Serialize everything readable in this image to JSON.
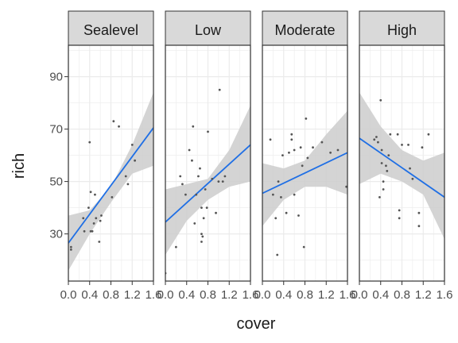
{
  "chart_data": {
    "type": "scatter",
    "xlabel": "cover",
    "ylabel": "rich",
    "xlim": [
      0,
      1.6
    ],
    "ylim": [
      12,
      102
    ],
    "x_ticks": [
      0.0,
      0.4,
      0.8,
      1.2,
      1.6
    ],
    "x_tick_labels": [
      "0.0",
      "0.4",
      "0.8",
      "1.2",
      "1.6"
    ],
    "y_ticks": [
      30,
      50,
      70,
      90
    ],
    "y_tick_labels": [
      "30",
      "50",
      "70",
      "90"
    ],
    "grid": true,
    "colors": {
      "panel_bg": "#ffffff",
      "grid": "#ebebeb",
      "strip_bg": "#d9d9d9",
      "point": "#555555",
      "fit_line": "#1f6fe5",
      "ribbon": "#cccccc"
    },
    "panels": [
      {
        "strip": "Sealevel",
        "fit": {
          "x0": 0.0,
          "y0": 26.5,
          "x1": 1.6,
          "y1": 70.5
        },
        "ribbon": {
          "x": [
            0.0,
            0.4,
            0.8,
            1.2,
            1.6
          ],
          "lower": [
            16,
            30,
            42,
            53,
            56
          ],
          "upper": [
            37,
            39,
            48,
            64,
            84
          ]
        },
        "points": [
          [
            0.05,
            25
          ],
          [
            0.05,
            24
          ],
          [
            0.28,
            36
          ],
          [
            0.3,
            31
          ],
          [
            0.38,
            40
          ],
          [
            0.4,
            65
          ],
          [
            0.45,
            31
          ],
          [
            0.5,
            45
          ],
          [
            0.48,
            34
          ],
          [
            0.52,
            36
          ],
          [
            0.58,
            27
          ],
          [
            0.62,
            37
          ],
          [
            0.82,
            44
          ],
          [
            0.85,
            73
          ],
          [
            0.95,
            71
          ],
          [
            1.08,
            52
          ],
          [
            1.12,
            49
          ],
          [
            1.2,
            64
          ],
          [
            1.25,
            58
          ],
          [
            0.42,
            46
          ],
          [
            0.6,
            35
          ],
          [
            0.42,
            31
          ]
        ]
      },
      {
        "strip": "Low",
        "fit": {
          "x0": 0.0,
          "y0": 34.5,
          "x1": 1.6,
          "y1": 64.0
        },
        "ribbon": {
          "x": [
            0.0,
            0.4,
            0.8,
            1.2,
            1.6
          ],
          "lower": [
            22,
            35,
            43,
            48,
            50
          ],
          "upper": [
            47,
            49,
            51,
            62,
            79
          ]
        },
        "points": [
          [
            0.0,
            15
          ],
          [
            0.2,
            25
          ],
          [
            0.28,
            52
          ],
          [
            0.32,
            49
          ],
          [
            0.38,
            45
          ],
          [
            0.45,
            62
          ],
          [
            0.5,
            58
          ],
          [
            0.52,
            71
          ],
          [
            0.55,
            34
          ],
          [
            0.62,
            52
          ],
          [
            0.65,
            55
          ],
          [
            0.68,
            40
          ],
          [
            0.68,
            30
          ],
          [
            0.68,
            27
          ],
          [
            0.72,
            36
          ],
          [
            0.75,
            47
          ],
          [
            0.78,
            40
          ],
          [
            0.8,
            69
          ],
          [
            0.88,
            51
          ],
          [
            0.95,
            38
          ],
          [
            1.0,
            50
          ],
          [
            1.02,
            85
          ],
          [
            1.08,
            50
          ],
          [
            1.12,
            52
          ],
          [
            0.58,
            45
          ],
          [
            0.7,
            29
          ]
        ]
      },
      {
        "strip": "Moderate",
        "fit": {
          "x0": 0.0,
          "y0": 45.5,
          "x1": 1.6,
          "y1": 61.0
        },
        "ribbon": {
          "x": [
            0.0,
            0.4,
            0.8,
            1.2,
            1.6
          ],
          "lower": [
            33,
            43,
            48,
            48,
            45
          ],
          "upper": [
            57,
            55,
            58,
            68,
            77
          ]
        },
        "points": [
          [
            0.15,
            66
          ],
          [
            0.2,
            45
          ],
          [
            0.25,
            36
          ],
          [
            0.28,
            22
          ],
          [
            0.3,
            50
          ],
          [
            0.35,
            44
          ],
          [
            0.45,
            38
          ],
          [
            0.5,
            61
          ],
          [
            0.55,
            68
          ],
          [
            0.55,
            66
          ],
          [
            0.6,
            62
          ],
          [
            0.6,
            45
          ],
          [
            0.68,
            37
          ],
          [
            0.72,
            63
          ],
          [
            0.78,
            25
          ],
          [
            0.82,
            74
          ],
          [
            0.85,
            59
          ],
          [
            0.75,
            56
          ],
          [
            0.95,
            63
          ],
          [
            1.12,
            65
          ],
          [
            1.28,
            61
          ],
          [
            1.42,
            62
          ],
          [
            1.58,
            48
          ],
          [
            0.38,
            60
          ]
        ]
      },
      {
        "strip": "High",
        "fit": {
          "x0": 0.0,
          "y0": 66.5,
          "x1": 1.6,
          "y1": 44.0
        },
        "ribbon": {
          "x": [
            0.0,
            0.4,
            0.8,
            1.2,
            1.6
          ],
          "lower": [
            49,
            53,
            50,
            45,
            28
          ],
          "upper": [
            84,
            71,
            62,
            58,
            61
          ]
        },
        "points": [
          [
            0.28,
            66
          ],
          [
            0.32,
            67
          ],
          [
            0.38,
            44
          ],
          [
            0.4,
            81
          ],
          [
            0.42,
            62
          ],
          [
            0.42,
            57
          ],
          [
            0.45,
            50
          ],
          [
            0.45,
            47
          ],
          [
            0.5,
            56
          ],
          [
            0.52,
            54
          ],
          [
            0.58,
            68
          ],
          [
            0.72,
            68
          ],
          [
            0.75,
            39
          ],
          [
            0.75,
            36
          ],
          [
            0.8,
            64
          ],
          [
            0.92,
            64
          ],
          [
            0.95,
            55
          ],
          [
            1.0,
            51
          ],
          [
            1.12,
            38
          ],
          [
            1.12,
            33
          ],
          [
            1.18,
            63
          ],
          [
            1.3,
            68
          ],
          [
            0.35,
            65
          ],
          [
            0.55,
            60
          ]
        ]
      }
    ]
  }
}
